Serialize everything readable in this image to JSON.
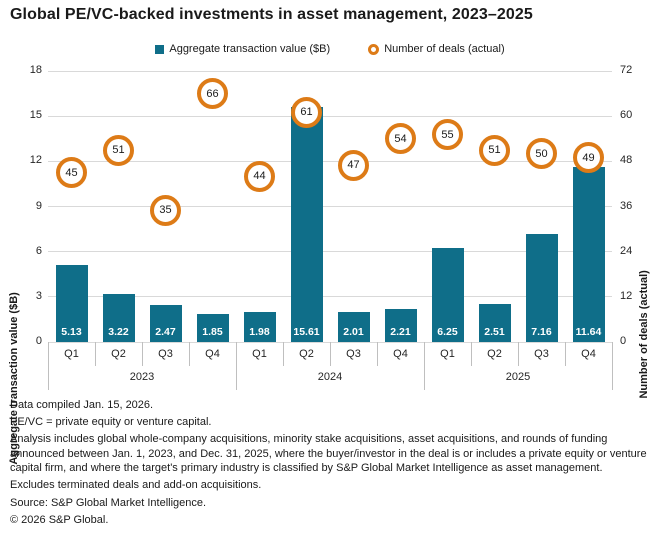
{
  "title": "Global PE/VC-backed investments in asset management, 2023–2025",
  "legend": [
    {
      "label": "Aggregate transaction value ($B)",
      "marker": "square-icon"
    },
    {
      "label": "Number of deals (actual)",
      "marker": "ring-icon"
    }
  ],
  "chart_data": {
    "type": "bar",
    "categories": [
      "Q1",
      "Q2",
      "Q3",
      "Q4",
      "Q1",
      "Q2",
      "Q3",
      "Q4",
      "Q1",
      "Q2",
      "Q3",
      "Q4"
    ],
    "year_groups": [
      {
        "label": "2023",
        "span": 4
      },
      {
        "label": "2024",
        "span": 4
      },
      {
        "label": "2025",
        "span": 4
      }
    ],
    "series": [
      {
        "name": "Aggregate transaction value ($B)",
        "type": "bar",
        "axis": "left",
        "values": [
          5.13,
          3.22,
          2.47,
          1.85,
          1.98,
          15.61,
          2.01,
          2.21,
          6.25,
          2.51,
          7.16,
          11.64
        ]
      },
      {
        "name": "Number of deals (actual)",
        "type": "point",
        "axis": "right",
        "values": [
          45,
          51,
          35,
          66,
          44,
          61,
          47,
          54,
          55,
          51,
          50,
          49
        ]
      }
    ],
    "left_axis": {
      "label": "Aggregate transaction value ($B)",
      "ticks": [
        0,
        3,
        6,
        9,
        12,
        15,
        18
      ],
      "range": [
        0,
        18
      ]
    },
    "right_axis": {
      "label": "Number of deals (actual)",
      "ticks": [
        0,
        12,
        24,
        36,
        48,
        60,
        72
      ],
      "range": [
        0,
        72
      ]
    },
    "grid": true,
    "legend_position": "top"
  },
  "footnotes": [
    "Data compiled Jan. 15, 2026.",
    "PE/VC = private equity or venture capital.",
    "Analysis includes global whole-company acquisitions, minority stake acquisitions, asset acquisitions, and rounds of funding announced between Jan. 1, 2023, and Dec. 31, 2025, where the buyer/investor in the deal is or includes a private equity or venture capital firm, and where the target's primary industry is classified by S&P Global Market Intelligence as asset management.",
    "Excludes terminated deals and add-on acquisitions.",
    "Source: S&P Global Market Intelligence.",
    "© 2026 S&P Global."
  ],
  "colors": {
    "bar": "#0f6e89",
    "deal_ring": "#dd7b17",
    "grid": "#d9d9d9",
    "axis_line": "#bfbfbf",
    "bar_label": "#ffffff",
    "text": "#1a1a1a"
  }
}
